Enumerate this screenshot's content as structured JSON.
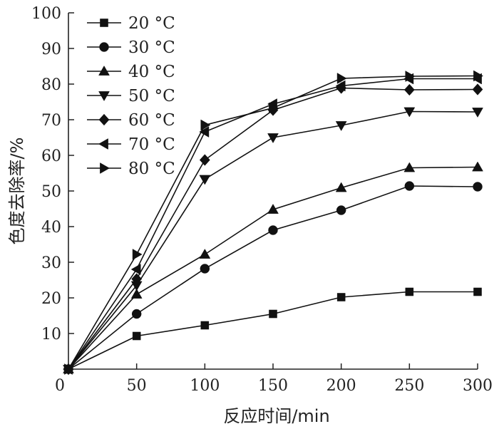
{
  "chart_data": {
    "type": "line",
    "xlabel": "反应时间/min",
    "ylabel": "色度去除率/%",
    "xlim": [
      0,
      300
    ],
    "ylim": [
      0,
      100
    ],
    "x_ticks": [
      0,
      50,
      100,
      150,
      200,
      250,
      300
    ],
    "y_ticks": [
      10,
      20,
      30,
      40,
      50,
      60,
      70,
      80,
      90,
      100
    ],
    "x_tick_labels": [
      "0",
      "50",
      "100",
      "150",
      "200",
      "250",
      "300"
    ],
    "y_tick_labels": [
      "10",
      "20",
      "30",
      "40",
      "50",
      "60",
      "70",
      "80",
      "90",
      "100"
    ],
    "grid": false,
    "legend_position": "top-left",
    "x": [
      0,
      50,
      100,
      150,
      200,
      250,
      300
    ],
    "series": [
      {
        "name": "20 °C",
        "marker": "square",
        "values": [
          0,
          9.3,
          12.3,
          15.5,
          20.2,
          21.7,
          21.7
        ]
      },
      {
        "name": "30 °C",
        "marker": "circle",
        "values": [
          0,
          15.5,
          28.2,
          39.0,
          44.6,
          51.4,
          51.2
        ]
      },
      {
        "name": "40 °C",
        "marker": "triangle-up",
        "values": [
          0,
          21.0,
          32.2,
          44.8,
          50.9,
          56.5,
          56.7
        ]
      },
      {
        "name": "50 °C",
        "marker": "triangle-down",
        "values": [
          0,
          23.5,
          53.3,
          65.0,
          68.4,
          72.3,
          72.2
        ]
      },
      {
        "name": "60 °C",
        "marker": "diamond",
        "values": [
          0,
          25.3,
          58.7,
          72.7,
          78.9,
          78.4,
          78.5
        ]
      },
      {
        "name": "70 °C",
        "marker": "triangle-left",
        "values": [
          0,
          28.0,
          66.6,
          74.4,
          79.5,
          81.5,
          81.5
        ]
      },
      {
        "name": "80 °C",
        "marker": "triangle-right",
        "values": [
          0,
          32.2,
          68.5,
          73.3,
          81.6,
          82.2,
          82.3
        ]
      }
    ]
  }
}
